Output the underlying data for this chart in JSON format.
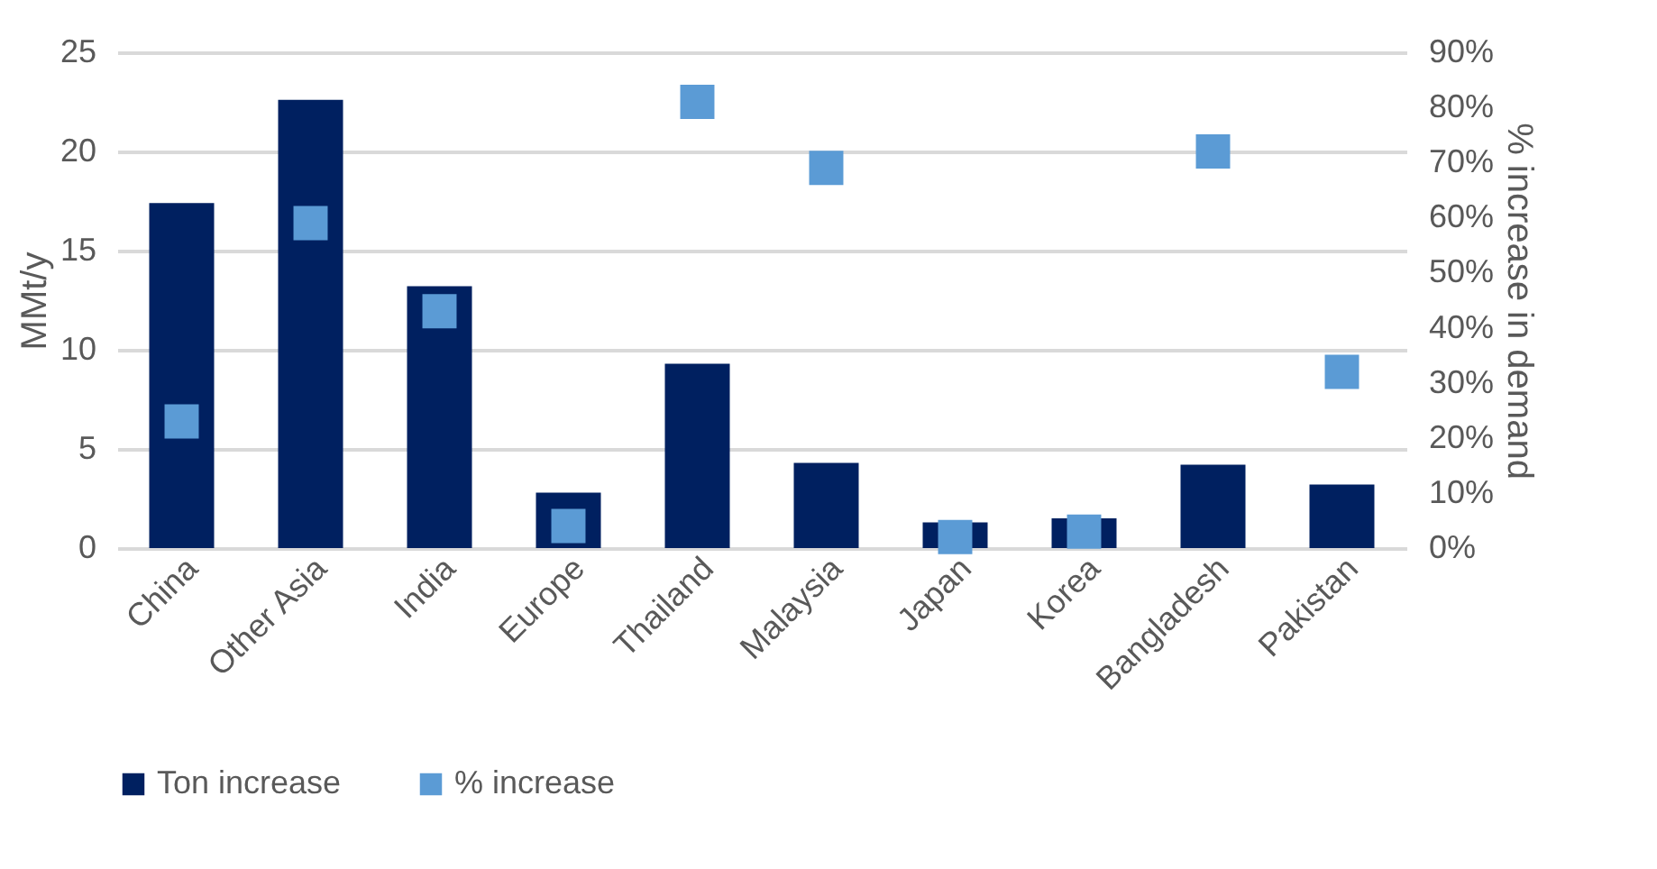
{
  "chart_data": {
    "type": "bar",
    "categories": [
      "China",
      "Other Asia",
      "India",
      "Europe",
      "Thailand",
      "Malaysia",
      "Japan",
      "Korea",
      "Bangladesh",
      "Pakistan"
    ],
    "series": [
      {
        "name": "Ton increase",
        "color": "#002060",
        "values": [
          17.4,
          22.6,
          13.2,
          2.8,
          9.3,
          4.3,
          1.3,
          1.5,
          4.2,
          3.2
        ]
      },
      {
        "name": "% increase",
        "type": "scatter",
        "axis": "y2",
        "color": "#5b9bd5",
        "values": [
          23,
          59,
          43,
          4,
          81,
          69,
          2,
          3,
          72,
          32
        ]
      }
    ],
    "ylabel": "MMt/y",
    "y2label": "% increase in demand",
    "ylim": [
      0,
      25
    ],
    "yticks": [
      0,
      5,
      10,
      15,
      20,
      25
    ],
    "y2lim": [
      0,
      90
    ],
    "y2ticks": [
      {
        "value": 0,
        "label": "0%"
      },
      {
        "value": 10,
        "label": "10%"
      },
      {
        "value": 20,
        "label": "20%"
      },
      {
        "value": 30,
        "label": "30%"
      },
      {
        "value": 40,
        "label": "40%"
      },
      {
        "value": 50,
        "label": "50%"
      },
      {
        "value": 60,
        "label": "60%"
      },
      {
        "value": 70,
        "label": "70%"
      },
      {
        "value": 80,
        "label": "80%"
      },
      {
        "value": 90,
        "label": "90%"
      }
    ],
    "grid": "y",
    "legend": "bottom",
    "marker": "square"
  }
}
